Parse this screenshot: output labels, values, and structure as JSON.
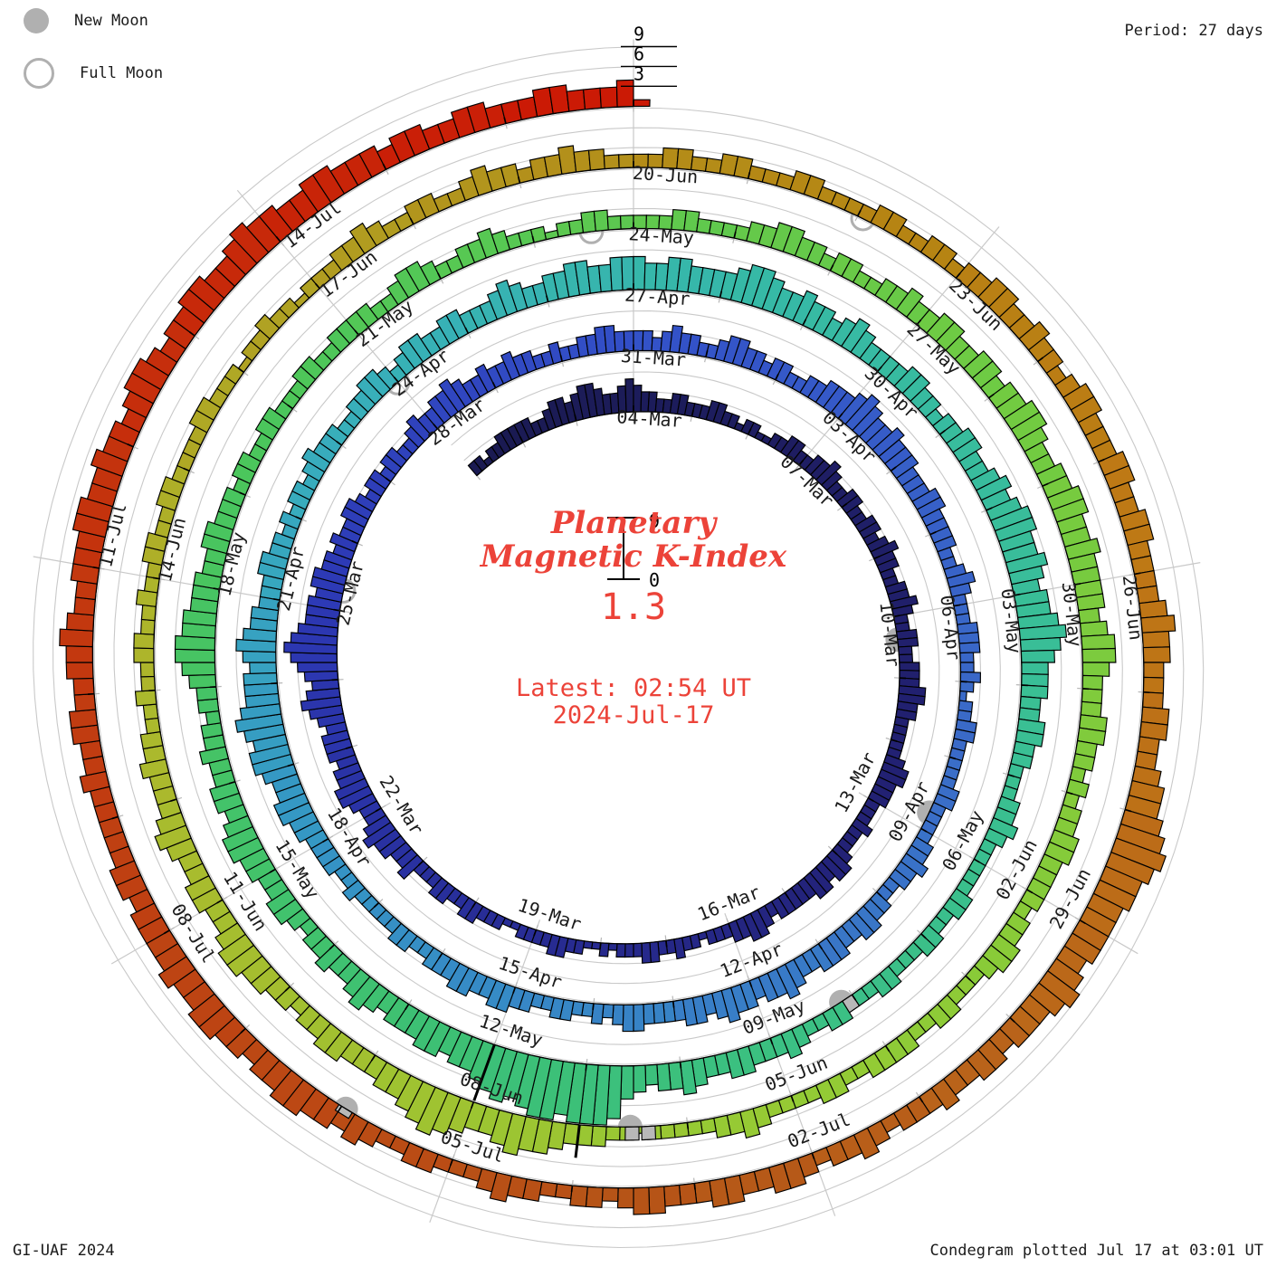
{
  "meta": {
    "legend": {
      "new_moon": "New Moon",
      "full_moon": "Full Moon"
    },
    "period_label": "Period: 27 days",
    "credit": "GI-UAF 2024",
    "plotted_label": "Condegram plotted Jul 17 at 03:01 UT",
    "title_line1": "Planetary",
    "title_line2": "Magnetic K-Index",
    "current_value": "1.3",
    "latest_line1": "Latest: 02:54 UT",
    "latest_line2": "2024-Jul-17",
    "accent_red": "#ec4339",
    "grid_gray": "#c9c9c9",
    "moon_gray": "#b0b0b0"
  },
  "chart_data": {
    "type": "bar",
    "subtype": "condegram spiral of 3-hour planetary K-index bars",
    "period_days": 27,
    "k_per_day": 8,
    "klim": [
      0,
      9
    ],
    "start_date": "01-Mar-2024",
    "end_date": "17-Jul-2024",
    "angle_zero_date": "04-Mar",
    "center_scale_labels": {
      "max": "9",
      "min": "0"
    },
    "radial_tick_labels": [
      "3",
      "6",
      "9"
    ],
    "date_labels": [
      "04-Mar",
      "07-Mar",
      "10-Mar",
      "13-Mar",
      "16-Mar",
      "19-Mar",
      "22-Mar",
      "25-Mar",
      "28-Mar",
      "31-Mar",
      "03-Apr",
      "06-Apr",
      "09-Apr",
      "12-Apr",
      "15-Apr",
      "18-Apr",
      "21-Apr",
      "24-Apr",
      "27-Apr",
      "30-Apr",
      "03-May",
      "06-May",
      "09-May",
      "12-May",
      "15-May",
      "18-May",
      "21-May",
      "24-May",
      "27-May",
      "30-May",
      "02-Jun",
      "05-Jun",
      "08-Jun",
      "11-Jun",
      "14-Jun",
      "17-Jun",
      "20-Jun",
      "23-Jun",
      "26-Jun",
      "29-Jun",
      "02-Jul",
      "05-Jul",
      "08-Jul",
      "11-Jul",
      "14-Jul"
    ],
    "moons": {
      "new_moon_dates": [
        "10-Mar",
        "08-Apr",
        "08-May",
        "06-Jun",
        "05-Jul"
      ],
      "new_moon_days": [
        9.38,
        38.77,
        68.14,
        97.53,
        126.96
      ],
      "full_moon_dates": [
        "25-Mar",
        "23-Apr",
        "23-May",
        "22-Jun"
      ],
      "full_moon_days": [
        24.29,
        53.99,
        83.58,
        113.05
      ]
    },
    "color_stops": [
      [
        0,
        "#1a1a50"
      ],
      [
        13,
        "#232278"
      ],
      [
        24,
        "#2c38b4"
      ],
      [
        30,
        "#3350c8"
      ],
      [
        38,
        "#3a6cc8"
      ],
      [
        48,
        "#3595c5"
      ],
      [
        53,
        "#38aebc"
      ],
      [
        58,
        "#36b8a8"
      ],
      [
        65,
        "#3abf92"
      ],
      [
        72,
        "#3cc076"
      ],
      [
        80,
        "#4cc65a"
      ],
      [
        88,
        "#70cb42"
      ],
      [
        96,
        "#95cb34"
      ],
      [
        104,
        "#acb82c"
      ],
      [
        110,
        "#b2921c"
      ],
      [
        113,
        "#b58613"
      ],
      [
        117,
        "#bf7715"
      ],
      [
        121,
        "#ba661a"
      ],
      [
        124,
        "#b55618"
      ],
      [
        131,
        "#c23a10"
      ],
      [
        138,
        "#cc1804"
      ]
    ],
    "data_gap_bars": [
      {
        "day": 68.0,
        "k": 2
      },
      {
        "day": 97.3,
        "k": 2
      },
      {
        "day": 97.45,
        "k": 2
      },
      {
        "day": 126.9,
        "k": 1
      }
    ],
    "emphasized_day_boundaries": [
      {
        "day": 72,
        "k_height": 9
      },
      {
        "day": 98,
        "k_height": 5
      }
    ],
    "days": [
      {
        "date": "01-Mar",
        "k": "22122333"
      },
      {
        "date": "02-Mar",
        "k": "33223443"
      },
      {
        "date": "03-Mar",
        "k": "45543345"
      },
      {
        "date": "04-Mar",
        "k": "43322332"
      },
      {
        "date": "05-Mar",
        "k": "22332212"
      },
      {
        "date": "06-Mar",
        "k": "21122332"
      },
      {
        "date": "07-Mar",
        "k": "23343223"
      },
      {
        "date": "08-Mar",
        "k": "32233234"
      },
      {
        "date": "09-Mar",
        "k": "33223343"
      },
      {
        "date": "10-Mar",
        "k": "22332233"
      },
      {
        "date": "11-Mar",
        "k": "34433222"
      },
      {
        "date": "12-Mar",
        "k": "22344333"
      },
      {
        "date": "13-Mar",
        "k": "22232223"
      },
      {
        "date": "14-Mar",
        "k": "44344333"
      },
      {
        "date": "15-Mar",
        "k": "33234433"
      },
      {
        "date": "16-Mar",
        "k": "22212232"
      },
      {
        "date": "17-Mar",
        "k": "23322212"
      },
      {
        "date": "18-Mar",
        "k": "11223322"
      },
      {
        "date": "19-Mar",
        "k": "22112223"
      },
      {
        "date": "20-Mar",
        "k": "32233222"
      },
      {
        "date": "21-Mar",
        "k": "43344543"
      },
      {
        "date": "22-Mar",
        "k": "34554434"
      },
      {
        "date": "23-Mar",
        "k": "44345654"
      },
      {
        "date": "24-Mar",
        "k": "56787655"
      },
      {
        "date": "25-Mar",
        "k": "54554434"
      },
      {
        "date": "26-Mar",
        "k": "33443233"
      },
      {
        "date": "27-Mar",
        "k": "23322343"
      },
      {
        "date": "28-Mar",
        "k": "34454334"
      },
      {
        "date": "29-Mar",
        "k": "33433223"
      },
      {
        "date": "30-Mar",
        "k": "22334433"
      },
      {
        "date": "31-Mar",
        "k": "33234332"
      },
      {
        "date": "01-Apr",
        "k": "23443323"
      },
      {
        "date": "02-Apr",
        "k": "32233444"
      },
      {
        "date": "03-Apr",
        "k": "56544544"
      },
      {
        "date": "04-Apr",
        "k": "43334433"
      },
      {
        "date": "05-Apr",
        "k": "33223432"
      },
      {
        "date": "06-Apr",
        "k": "22333223"
      },
      {
        "date": "07-Apr",
        "k": "21223322"
      },
      {
        "date": "08-Apr",
        "k": "22233222"
      },
      {
        "date": "09-Apr",
        "k": "23343322"
      },
      {
        "date": "10-Apr",
        "k": "33443344"
      },
      {
        "date": "11-Apr",
        "k": "43345443"
      },
      {
        "date": "12-Apr",
        "k": "44543443"
      },
      {
        "date": "13-Apr",
        "k": "33344323"
      },
      {
        "date": "14-Apr",
        "k": "22332233"
      },
      {
        "date": "15-Apr",
        "k": "44334433"
      },
      {
        "date": "16-Apr",
        "k": "32233222"
      },
      {
        "date": "17-Apr",
        "k": "22322333"
      },
      {
        "date": "18-Apr",
        "k": "34455445"
      },
      {
        "date": "19-Apr",
        "k": "66567655"
      },
      {
        "date": "20-Apr",
        "k": "54565443"
      },
      {
        "date": "21-Apr",
        "k": "33443323"
      },
      {
        "date": "22-Apr",
        "k": "23323433"
      },
      {
        "date": "23-Apr",
        "k": "32233443"
      },
      {
        "date": "24-Apr",
        "k": "23443344"
      },
      {
        "date": "25-Apr",
        "k": "33345433"
      },
      {
        "date": "26-Apr",
        "k": "44554455"
      },
      {
        "date": "27-Apr",
        "k": "54455444"
      },
      {
        "date": "28-Apr",
        "k": "45665445"
      },
      {
        "date": "29-Apr",
        "k": "44345433"
      },
      {
        "date": "30-Apr",
        "k": "33443323"
      },
      {
        "date": "01-May",
        "k": "34433454"
      },
      {
        "date": "02-May",
        "k": "56655654"
      },
      {
        "date": "03-May",
        "k": "55676544"
      },
      {
        "date": "04-May",
        "k": "43344332"
      },
      {
        "date": "05-May",
        "k": "22334322"
      },
      {
        "date": "06-May",
        "k": "22233223"
      },
      {
        "date": "07-May",
        "k": "32223322"
      },
      {
        "date": "08-May",
        "k": "23322343"
      },
      {
        "date": "09-May",
        "k": "33443345"
      },
      {
        "date": "10-May",
        "k": "44345899"
      },
      {
        "date": "11-May",
        "k": "98998787"
      },
      {
        "date": "12-May",
        "k": "65545544"
      },
      {
        "date": "13-May",
        "k": "43454334"
      },
      {
        "date": "14-May",
        "k": "33234433"
      },
      {
        "date": "15-May",
        "k": "44554344"
      },
      {
        "date": "16-May",
        "k": "33433233"
      },
      {
        "date": "17-May",
        "k": "45665544"
      },
      {
        "date": "18-May",
        "k": "43344333"
      },
      {
        "date": "19-May",
        "k": "23322332"
      },
      {
        "date": "20-May",
        "k": "22332233"
      },
      {
        "date": "21-May",
        "k": "33223443"
      },
      {
        "date": "22-May",
        "k": "22334322"
      },
      {
        "date": "23-May",
        "k": "21223322"
      },
      {
        "date": "24-May",
        "k": "22233222"
      },
      {
        "date": "25-May",
        "k": "23344332"
      },
      {
        "date": "26-May",
        "k": "33223343"
      },
      {
        "date": "27-May",
        "k": "34433443"
      },
      {
        "date": "28-May",
        "k": "44554334"
      },
      {
        "date": "29-May",
        "k": "45544544"
      },
      {
        "date": "30-May",
        "k": "44345543"
      },
      {
        "date": "31-May",
        "k": "33443323"
      },
      {
        "date": "01-Jun",
        "k": "23344333"
      },
      {
        "date": "02-Jun",
        "k": "32334432"
      },
      {
        "date": "03-Jun",
        "k": "22332233"
      },
      {
        "date": "04-Jun",
        "k": "33223322"
      },
      {
        "date": "05-Jun",
        "k": "22343322"
      },
      {
        "date": "06-Jun",
        "k": "22212233"
      },
      {
        "date": "07-Jun",
        "k": "34556544"
      },
      {
        "date": "08-Jun",
        "k": "56765443"
      },
      {
        "date": "09-Jun",
        "k": "33443323"
      },
      {
        "date": "10-Jun",
        "k": "34455433"
      },
      {
        "date": "11-Jun",
        "k": "44334543"
      },
      {
        "date": "12-Jun",
        "k": "33433223"
      },
      {
        "date": "13-Jun",
        "k": "22332232"
      },
      {
        "date": "14-Jun",
        "k": "23322332"
      },
      {
        "date": "15-Jun",
        "k": "22233222"
      },
      {
        "date": "16-Jun",
        "k": "12232212"
      },
      {
        "date": "17-Jun",
        "k": "22334322"
      },
      {
        "date": "18-Jun",
        "k": "33223433"
      },
      {
        "date": "19-Jun",
        "k": "23343322"
      },
      {
        "date": "20-Jun",
        "k": "22332233"
      },
      {
        "date": "21-Jun",
        "k": "22233222"
      },
      {
        "date": "22-Jun",
        "k": "23322332"
      },
      {
        "date": "23-Jun",
        "k": "33443343"
      },
      {
        "date": "24-Jun",
        "k": "32344333"
      },
      {
        "date": "25-Jun",
        "k": "44334433"
      },
      {
        "date": "26-Jun",
        "k": "33454433"
      },
      {
        "date": "27-Jun",
        "k": "34433455"
      },
      {
        "date": "28-Jun",
        "k": "67876655"
      },
      {
        "date": "29-Jun",
        "k": "55456544"
      },
      {
        "date": "30-Jun",
        "k": "43443343"
      },
      {
        "date": "01-Jul",
        "k": "33234332"
      },
      {
        "date": "02-Jul",
        "k": "34433443"
      },
      {
        "date": "03-Jul",
        "k": "33443233"
      },
      {
        "date": "04-Jul",
        "k": "22334322"
      },
      {
        "date": "05-Jul",
        "k": "23322343"
      },
      {
        "date": "06-Jul",
        "k": "44554434"
      },
      {
        "date": "07-Jul",
        "k": "45544544"
      },
      {
        "date": "08-Jul",
        "k": "44344333"
      },
      {
        "date": "09-Jul",
        "k": "33433443"
      },
      {
        "date": "10-Jul",
        "k": "34454334"
      },
      {
        "date": "11-Jul",
        "k": "44554454"
      },
      {
        "date": "12-Jul",
        "k": "43455434"
      },
      {
        "date": "13-Jul",
        "k": "45544565"
      },
      {
        "date": "14-Jul",
        "k": "54455444"
      },
      {
        "date": "15-Jul",
        "k": "34433443"
      },
      {
        "date": "16-Jul",
        "k": "33443334"
      },
      {
        "date": "17-Jul",
        "k": "1"
      }
    ]
  }
}
